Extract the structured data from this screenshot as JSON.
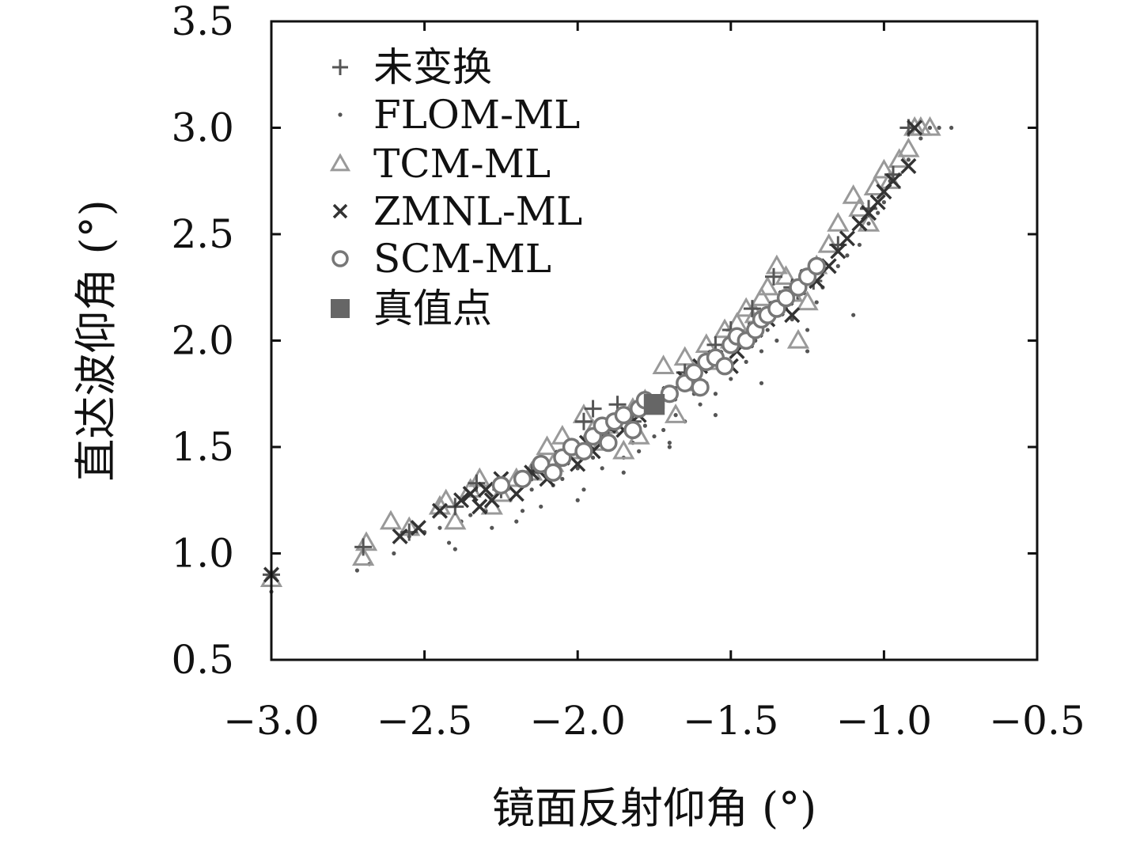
{
  "chart_data": {
    "type": "scatter",
    "xlabel": "镜面反射仰角 (°)",
    "ylabel": "直达波仰角 (°)",
    "xlim": [
      -3.0,
      -0.5
    ],
    "ylim": [
      0.5,
      3.5
    ],
    "xticks": [
      -3.0,
      -2.5,
      -2.0,
      -1.5,
      -1.0,
      -0.5
    ],
    "xtick_labels": [
      "−3.0",
      "−2.5",
      "−2.0",
      "−1.5",
      "−1.0",
      "−0.5"
    ],
    "yticks": [
      0.5,
      1.0,
      1.5,
      2.0,
      2.5,
      3.0,
      3.5
    ],
    "ytick_labels": [
      "0.5",
      "1.0",
      "1.5",
      "2.0",
      "2.5",
      "3.0",
      "3.5"
    ],
    "grid": false,
    "legend_position": "top-left",
    "series": [
      {
        "name": "未变换",
        "marker": "plus",
        "color": "#555555",
        "x": [
          -3.0,
          -2.7,
          -2.55,
          -2.4,
          -2.33,
          -2.25,
          -2.15,
          -2.05,
          -1.98,
          -1.95,
          -1.9,
          -1.87,
          -1.82,
          -1.78,
          -1.72,
          -1.65,
          -1.55,
          -1.5,
          -1.43,
          -1.36,
          -1.3,
          -1.23,
          -1.15,
          -1.05,
          -0.97,
          -0.92
        ],
        "y": [
          0.9,
          1.03,
          1.1,
          1.22,
          1.33,
          1.3,
          1.38,
          1.45,
          1.62,
          1.68,
          1.58,
          1.7,
          1.62,
          1.7,
          1.72,
          1.85,
          1.98,
          2.05,
          2.15,
          2.3,
          2.25,
          2.28,
          2.45,
          2.62,
          2.78,
          3.0
        ]
      },
      {
        "name": "FLOM-ML",
        "marker": "dot",
        "color": "#555555",
        "x": [
          -3.0,
          -2.72,
          -2.68,
          -2.6,
          -2.55,
          -2.5,
          -2.45,
          -2.42,
          -2.38,
          -2.35,
          -2.3,
          -2.28,
          -2.22,
          -2.18,
          -2.15,
          -2.12,
          -2.08,
          -2.05,
          -2.0,
          -1.98,
          -1.95,
          -1.92,
          -1.9,
          -1.85,
          -1.82,
          -1.8,
          -1.78,
          -1.75,
          -1.72,
          -1.7,
          -1.68,
          -1.65,
          -1.62,
          -1.6,
          -1.58,
          -1.55,
          -1.52,
          -1.5,
          -1.48,
          -1.45,
          -1.42,
          -1.4,
          -1.38,
          -1.35,
          -1.32,
          -1.3,
          -1.28,
          -1.25,
          -1.22,
          -1.2,
          -1.15,
          -1.12,
          -1.08,
          -1.05,
          -1.02,
          -1.0,
          -0.98,
          -0.95,
          -0.92,
          -0.88,
          -0.85,
          -0.82,
          -0.78,
          -2.4,
          -2.2,
          -2.0,
          -1.85,
          -1.7,
          -1.55,
          -1.4,
          -1.25,
          -1.1
        ],
        "y": [
          0.82,
          0.92,
          0.95,
          1.0,
          1.08,
          1.1,
          1.12,
          1.05,
          1.15,
          1.18,
          1.2,
          1.12,
          1.25,
          1.2,
          1.3,
          1.22,
          1.32,
          1.35,
          1.4,
          1.3,
          1.45,
          1.4,
          1.5,
          1.45,
          1.52,
          1.48,
          1.6,
          1.55,
          1.58,
          1.52,
          1.65,
          1.62,
          1.75,
          1.7,
          1.8,
          1.75,
          1.85,
          1.82,
          1.95,
          1.9,
          2.0,
          1.95,
          2.05,
          2.0,
          2.15,
          2.1,
          2.2,
          2.05,
          2.18,
          2.25,
          2.35,
          2.4,
          2.45,
          2.55,
          2.6,
          2.65,
          2.75,
          2.78,
          2.85,
          2.95,
          3.0,
          3.0,
          3.0,
          1.02,
          1.15,
          1.25,
          1.38,
          1.5,
          1.65,
          1.8,
          1.95,
          2.12
        ]
      },
      {
        "name": "TCM-ML",
        "marker": "triangle",
        "color": "#999999",
        "x": [
          -3.0,
          -2.7,
          -2.69,
          -2.61,
          -2.55,
          -2.45,
          -2.43,
          -2.4,
          -2.35,
          -2.32,
          -2.28,
          -2.25,
          -2.2,
          -2.15,
          -2.1,
          -2.08,
          -2.05,
          -2.0,
          -1.98,
          -1.95,
          -1.92,
          -1.9,
          -1.85,
          -1.82,
          -1.8,
          -1.78,
          -1.72,
          -1.68,
          -1.65,
          -1.62,
          -1.58,
          -1.55,
          -1.52,
          -1.5,
          -1.48,
          -1.45,
          -1.42,
          -1.4,
          -1.38,
          -1.35,
          -1.32,
          -1.3,
          -1.28,
          -1.25,
          -1.22,
          -1.18,
          -1.15,
          -1.1,
          -1.08,
          -1.05,
          -1.03,
          -1.0,
          -0.98,
          -0.95,
          -0.92,
          -0.9,
          -0.88,
          -0.85
        ],
        "y": [
          0.88,
          0.98,
          1.05,
          1.15,
          1.12,
          1.22,
          1.25,
          1.15,
          1.3,
          1.35,
          1.22,
          1.28,
          1.35,
          1.38,
          1.5,
          1.42,
          1.55,
          1.48,
          1.65,
          1.58,
          1.52,
          1.6,
          1.48,
          1.68,
          1.55,
          1.72,
          1.88,
          1.65,
          1.92,
          1.8,
          1.98,
          1.9,
          2.05,
          2.0,
          2.08,
          2.15,
          2.12,
          2.2,
          2.25,
          2.35,
          2.3,
          2.22,
          2.0,
          2.18,
          2.35,
          2.45,
          2.55,
          2.68,
          2.62,
          2.55,
          2.72,
          2.8,
          2.75,
          2.85,
          2.9,
          3.0,
          3.0,
          3.0
        ]
      },
      {
        "name": "ZMNL-ML",
        "marker": "cross",
        "color": "#333333",
        "x": [
          -3.0,
          -2.58,
          -2.52,
          -2.45,
          -2.38,
          -2.35,
          -2.32,
          -2.3,
          -2.28,
          -2.25,
          -2.2,
          -2.15,
          -2.1,
          -2.05,
          -2.0,
          -1.97,
          -1.95,
          -1.92,
          -1.9,
          -1.85,
          -1.8,
          -1.75,
          -1.7,
          -1.65,
          -1.6,
          -1.55,
          -1.5,
          -1.48,
          -1.45,
          -1.42,
          -1.38,
          -1.35,
          -1.32,
          -1.3,
          -1.28,
          -1.25,
          -1.22,
          -1.18,
          -1.15,
          -1.12,
          -1.08,
          -1.05,
          -1.02,
          -1.0,
          -0.97,
          -0.92,
          -0.9
        ],
        "y": [
          0.9,
          1.08,
          1.12,
          1.2,
          1.25,
          1.28,
          1.22,
          1.3,
          1.25,
          1.35,
          1.28,
          1.38,
          1.35,
          1.45,
          1.42,
          1.52,
          1.48,
          1.55,
          1.6,
          1.58,
          1.65,
          1.7,
          1.75,
          1.82,
          1.88,
          1.92,
          1.88,
          1.95,
          2.0,
          2.05,
          2.1,
          2.15,
          2.2,
          2.12,
          2.25,
          2.3,
          2.28,
          2.35,
          2.42,
          2.48,
          2.55,
          2.6,
          2.65,
          2.7,
          2.75,
          2.82,
          3.0
        ]
      },
      {
        "name": "SCM-ML",
        "marker": "circle",
        "color": "#777777",
        "x": [
          -2.25,
          -2.18,
          -2.12,
          -2.08,
          -2.05,
          -2.02,
          -1.98,
          -1.95,
          -1.92,
          -1.9,
          -1.88,
          -1.85,
          -1.82,
          -1.8,
          -1.78,
          -1.7,
          -1.65,
          -1.62,
          -1.6,
          -1.58,
          -1.55,
          -1.52,
          -1.5,
          -1.48,
          -1.45,
          -1.42,
          -1.4,
          -1.38,
          -1.35,
          -1.32,
          -1.28,
          -1.25,
          -1.22
        ],
        "y": [
          1.32,
          1.35,
          1.42,
          1.38,
          1.45,
          1.5,
          1.48,
          1.55,
          1.6,
          1.52,
          1.62,
          1.65,
          1.58,
          1.68,
          1.72,
          1.75,
          1.8,
          1.85,
          1.78,
          1.9,
          1.92,
          1.88,
          1.98,
          2.02,
          2.0,
          2.05,
          2.1,
          2.12,
          2.15,
          2.2,
          2.25,
          2.3,
          2.35
        ]
      },
      {
        "name": "真值点",
        "marker": "square",
        "color": "#666666",
        "x": [
          -1.75
        ],
        "y": [
          1.7
        ]
      }
    ]
  }
}
